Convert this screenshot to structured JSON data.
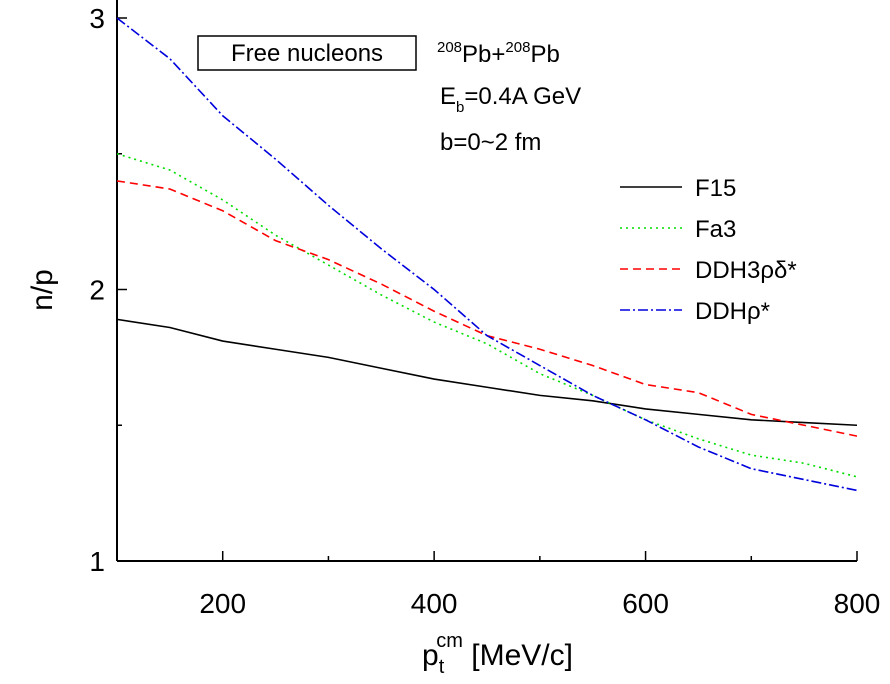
{
  "chart_data": {
    "type": "line",
    "box_label": "Free nucleons",
    "reaction": [
      "208",
      "Pb+",
      "208",
      "Pb"
    ],
    "energy": [
      "E",
      "b",
      "=0.4A GeV"
    ],
    "impact": "b=0~2 fm",
    "xlabel": {
      "base": "p",
      "sub": "t",
      "sup": "cm",
      "rest": " [MeV/c]"
    },
    "ylabel": "n/p",
    "x": [
      100,
      150,
      200,
      250,
      300,
      350,
      400,
      450,
      500,
      550,
      600,
      650,
      700,
      750,
      800
    ],
    "series": [
      {
        "name": "F15",
        "color": "#000000",
        "style": "solid",
        "values": [
          1.89,
          1.86,
          1.81,
          1.78,
          1.75,
          1.71,
          1.67,
          1.64,
          1.61,
          1.59,
          1.56,
          1.54,
          1.52,
          1.51,
          1.5
        ]
      },
      {
        "name": "Fa3",
        "color": "#00dd00",
        "style": "dotted",
        "values": [
          2.5,
          2.44,
          2.33,
          2.2,
          2.09,
          1.98,
          1.88,
          1.8,
          1.69,
          1.61,
          1.52,
          1.45,
          1.39,
          1.36,
          1.31
        ]
      },
      {
        "name": "DDH3ρδ*",
        "color": "#ff0000",
        "style": "dashed",
        "values": [
          2.4,
          2.37,
          2.29,
          2.18,
          2.11,
          2.02,
          1.92,
          1.83,
          1.78,
          1.72,
          1.65,
          1.62,
          1.54,
          1.5,
          1.46
        ]
      },
      {
        "name": "DDHρ*",
        "color": "#0000dd",
        "style": "dashdot",
        "values": [
          3.0,
          2.85,
          2.64,
          2.48,
          2.31,
          2.15,
          2.0,
          1.83,
          1.72,
          1.61,
          1.52,
          1.42,
          1.34,
          1.3,
          1.26
        ]
      }
    ],
    "xlim": [
      100,
      800
    ],
    "xticks": [
      200,
      400,
      600,
      800
    ],
    "xminor": [
      100,
      300,
      500,
      700
    ],
    "ylim": [
      1,
      3
    ],
    "yticks": [
      1,
      2,
      3
    ],
    "yminor": [
      1.5,
      2.5
    ],
    "grid": false
  }
}
